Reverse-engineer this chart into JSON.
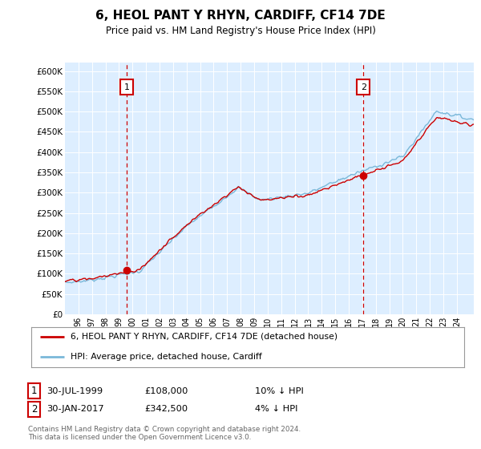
{
  "title": "6, HEOL PANT Y RHYN, CARDIFF, CF14 7DE",
  "subtitle": "Price paid vs. HM Land Registry's House Price Index (HPI)",
  "ylabel_ticks": [
    "£0",
    "£50K",
    "£100K",
    "£150K",
    "£200K",
    "£250K",
    "£300K",
    "£350K",
    "£400K",
    "£450K",
    "£500K",
    "£550K",
    "£600K"
  ],
  "ytick_vals": [
    0,
    50000,
    100000,
    150000,
    200000,
    250000,
    300000,
    350000,
    400000,
    450000,
    500000,
    550000,
    600000
  ],
  "ylim": [
    0,
    620000
  ],
  "xlim_start": 1995.0,
  "xlim_end": 2025.25,
  "purchase1_date": 1999.58,
  "purchase1_price": 108000,
  "purchase2_date": 2017.08,
  "purchase2_price": 342500,
  "legend_line1": "6, HEOL PANT Y RHYN, CARDIFF, CF14 7DE (detached house)",
  "legend_line2": "HPI: Average price, detached house, Cardiff",
  "annotation1_label": "1",
  "annotation1_date": "30-JUL-1999",
  "annotation1_price": "£108,000",
  "annotation1_hpi": "10% ↓ HPI",
  "annotation2_label": "2",
  "annotation2_date": "30-JAN-2017",
  "annotation2_price": "£342,500",
  "annotation2_hpi": "4% ↓ HPI",
  "footer": "Contains HM Land Registry data © Crown copyright and database right 2024.\nThis data is licensed under the Open Government Licence v3.0.",
  "hpi_color": "#7ab8d9",
  "price_color": "#cc0000",
  "bg_color": "#ddeeff",
  "marker_box_color": "#cc0000",
  "vline_color": "#cc0000",
  "xtick_labels": [
    "96",
    "97",
    "98",
    "99",
    "00",
    "01",
    "02",
    "03",
    "04",
    "05",
    "06",
    "07",
    "08",
    "09",
    "10",
    "11",
    "12",
    "13",
    "14",
    "15",
    "16",
    "17",
    "18",
    "19",
    "20",
    "21",
    "22",
    "23",
    "24"
  ],
  "xtick_positions": [
    1996,
    1997,
    1998,
    1999,
    2000,
    2001,
    2002,
    2003,
    2004,
    2005,
    2006,
    2007,
    2008,
    2009,
    2010,
    2011,
    2012,
    2013,
    2014,
    2015,
    2016,
    2017,
    2018,
    2019,
    2020,
    2021,
    2022,
    2023,
    2024
  ]
}
